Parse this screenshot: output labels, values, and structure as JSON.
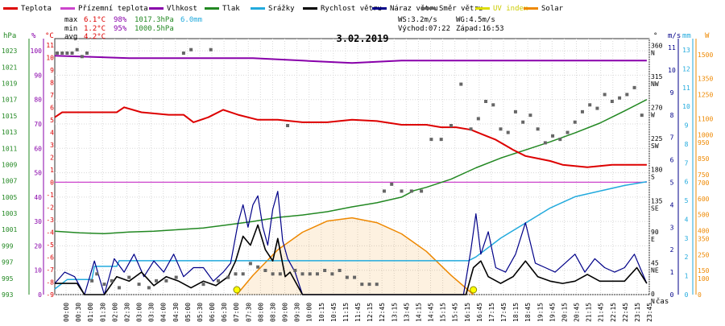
{
  "chart_data": {
    "type": "line",
    "title": "3.02.2019",
    "legend": [
      {
        "label": "Teplota",
        "color": "#dd0000"
      },
      {
        "label": "Přízemní teplota",
        "color": "#cc44cc"
      },
      {
        "label": "Vlhkost",
        "color": "#8800aa"
      },
      {
        "label": "Tlak",
        "color": "#228822"
      },
      {
        "label": "Srážky",
        "color": "#22aadd"
      },
      {
        "label": "Rychlost větru",
        "color": "#000000"
      },
      {
        "label": "Náraz větru",
        "color": "#000088"
      },
      {
        "label": "Směr větru",
        "color": "#666666"
      },
      {
        "label": "UV index",
        "color": "#dddd00"
      },
      {
        "label": "Solar",
        "color": "#ee8800"
      }
    ],
    "stats": {
      "max": {
        "label": "max",
        "temp": "6.1°C",
        "hum": "98%",
        "press": "1017.3hPa",
        "rain": "6.0mm"
      },
      "min": {
        "label": "min",
        "temp": "1.2°C",
        "hum": "95%",
        "press": "1000.5hPa"
      },
      "avg": {
        "label": "avg",
        "temp": "4.2°C"
      }
    },
    "info": {
      "ws": "WS:3.2m/s",
      "wg": "WG:4.5m/s",
      "sunrise": "Východ:07:22",
      "sunset": "Západ:16:53"
    },
    "axis_units": {
      "hpa": "hPa",
      "pct": "%",
      "degc": "°C",
      "dir": "°",
      "ms": "m/s",
      "mm": "mm",
      "w": "W",
      "cas": "čas"
    },
    "axes": {
      "hpa_ticks": [
        993,
        995,
        997,
        999,
        1001,
        1003,
        1005,
        1007,
        1009,
        1011,
        1013,
        1015,
        1017,
        1019,
        1021,
        1023
      ],
      "pct_ticks": [
        0,
        10,
        20,
        30,
        40,
        50,
        60,
        70,
        80,
        90,
        100
      ],
      "degc_ticks": [
        -9,
        -8,
        -7,
        -6,
        -5,
        -4,
        -3,
        -2,
        -1,
        0,
        1,
        2,
        3,
        4,
        5,
        6,
        7,
        8,
        9,
        10,
        11
      ],
      "dir_ticks": [
        {
          "v": 0,
          "label": "0",
          "dir": "N"
        },
        {
          "v": 45,
          "label": "45",
          "dir": "NE"
        },
        {
          "v": 90,
          "label": "90",
          "dir": "E"
        },
        {
          "v": 135,
          "label": "135",
          "dir": "SE"
        },
        {
          "v": 180,
          "label": "180",
          "dir": "S"
        },
        {
          "v": 225,
          "label": "225",
          "dir": "SW"
        },
        {
          "v": 270,
          "label": "270",
          "dir": "W"
        },
        {
          "v": 315,
          "label": "315",
          "dir": "NW"
        },
        {
          "v": 360,
          "label": "360",
          "dir": "N"
        }
      ],
      "ms_ticks": [
        0,
        1,
        2,
        3,
        4,
        5,
        6,
        7,
        8,
        9,
        10,
        11
      ],
      "mm_ticks": [
        0,
        1,
        2,
        3,
        4,
        5,
        6,
        7,
        8,
        9,
        10,
        11,
        12,
        13
      ],
      "w_ticks": [
        0,
        100,
        150,
        250,
        350,
        400,
        500,
        600,
        700,
        750,
        850,
        950,
        1000,
        1100,
        1250,
        1350,
        1500
      ],
      "x_ticks": [
        "00:00",
        "00:30",
        "01:00",
        "01:30",
        "02:00",
        "02:30",
        "03:00",
        "03:30",
        "04:00",
        "04:30",
        "05:00",
        "05:30",
        "06:00",
        "06:30",
        "07:00",
        "07:30",
        "08:00",
        "08:30",
        "09:00",
        "09:30",
        "10:00",
        "10:15",
        "10:45",
        "11:15",
        "11:45",
        "12:15",
        "12:45",
        "13:15",
        "13:45",
        "14:15",
        "14:45",
        "15:15",
        "15:45",
        "16:15",
        "16:45",
        "17:15",
        "17:45",
        "18:15",
        "18:45",
        "19:15",
        "19:45",
        "20:15",
        "20:45",
        "21:15",
        "21:45",
        "22:15",
        "22:45",
        "23:15",
        "23:45"
      ]
    },
    "series": [
      {
        "name": "Teplota",
        "unit": "°C",
        "x": [
          0,
          0.3,
          1.5,
          2.5,
          2.8,
          3.5,
          4.6,
          5.2,
          5.6,
          6.2,
          6.8,
          7.4,
          8.2,
          9.0,
          10.0,
          11.0,
          12.0,
          13.0,
          14.0,
          15.0,
          15.6,
          16.2,
          16.8,
          17.3,
          17.8,
          18.5,
          19.0,
          19.5,
          20.0,
          20.5,
          21.5,
          22.5,
          23.9
        ],
        "y": [
          5.2,
          5.6,
          5.6,
          5.6,
          6.0,
          5.6,
          5.4,
          5.4,
          4.8,
          5.2,
          5.8,
          5.4,
          5.0,
          5.0,
          4.8,
          4.8,
          5.0,
          4.9,
          4.6,
          4.6,
          4.4,
          4.4,
          4.2,
          3.8,
          3.4,
          2.6,
          2.1,
          1.9,
          1.7,
          1.4,
          1.2,
          1.4,
          1.4
        ]
      },
      {
        "name": "Přízemní teplota",
        "unit": "°C",
        "x": [
          0,
          23.9
        ],
        "y": [
          0,
          0
        ]
      },
      {
        "name": "Vlhkost",
        "unit": "%",
        "x": [
          0,
          3.0,
          6.0,
          8.0,
          10.0,
          12.0,
          14.0,
          16.0,
          18.0,
          20.0,
          22.0,
          23.9
        ],
        "y": [
          98,
          97,
          97,
          97,
          96,
          95,
          96,
          96,
          96,
          96,
          96,
          96
        ]
      },
      {
        "name": "Tlak",
        "unit": "hPa",
        "x": [
          0,
          1.0,
          2.0,
          3.0,
          4.0,
          5.0,
          6.0,
          7.0,
          8.0,
          9.0,
          10.0,
          11.0,
          12.0,
          13.0,
          14.0,
          14.5,
          15.0,
          16.0,
          17.0,
          18.0,
          19.0,
          20.0,
          21.0,
          22.0,
          23.0,
          23.9
        ],
        "y": [
          1000.8,
          1000.6,
          1000.5,
          1000.7,
          1000.8,
          1001.0,
          1001.2,
          1001.6,
          1002.0,
          1002.5,
          1002.8,
          1003.2,
          1003.8,
          1004.3,
          1005.0,
          1005.8,
          1006.2,
          1007.2,
          1008.6,
          1009.8,
          1010.8,
          1011.8,
          1012.9,
          1014.1,
          1015.6,
          1017.0
        ]
      },
      {
        "name": "Srážky",
        "unit": "mm",
        "x": [
          0,
          0.5,
          1.5,
          1.6,
          2.5,
          2.6,
          16.7,
          17.0,
          18.0,
          19.0,
          20.0,
          21.0,
          22.0,
          23.0,
          23.9
        ],
        "y": [
          0.3,
          0.8,
          0.8,
          1.5,
          1.5,
          1.8,
          1.8,
          2.0,
          3.0,
          3.8,
          4.6,
          5.2,
          5.5,
          5.8,
          6.0
        ]
      },
      {
        "name": "Rychlost větru",
        "unit": "m/s",
        "x": [
          0,
          0.5,
          0.9,
          1.2,
          1.5,
          2.0,
          2.5,
          3.0,
          3.5,
          4.0,
          4.5,
          5.0,
          5.5,
          6.0,
          6.5,
          7.0,
          7.3,
          7.6,
          7.9,
          8.2,
          8.5,
          8.8,
          9.0,
          9.3,
          9.5,
          10.0,
          16.6,
          16.9,
          17.2,
          17.5,
          18.0,
          18.5,
          19.0,
          19.5,
          20.0,
          20.5,
          21.0,
          21.5,
          22.0,
          22.5,
          23.0,
          23.5,
          23.9
        ],
        "y": [
          0.5,
          0.5,
          0.5,
          0,
          0,
          0,
          0.8,
          0.6,
          1.0,
          0.4,
          0.8,
          0.6,
          0.3,
          0.6,
          0.4,
          0.8,
          1.5,
          2.6,
          2.2,
          3.1,
          2.0,
          1.5,
          2.5,
          0.8,
          1.0,
          0,
          0,
          1.2,
          1.5,
          0.8,
          0.5,
          0.8,
          1.5,
          0.8,
          0.6,
          0.5,
          0.6,
          0.9,
          0.6,
          0.6,
          0.6,
          1.2,
          0.5
        ]
      },
      {
        "name": "Náraz větru",
        "unit": "m/s",
        "x": [
          0,
          0.4,
          0.8,
          1.2,
          1.6,
          2.0,
          2.4,
          2.8,
          3.2,
          3.6,
          4.0,
          4.4,
          4.8,
          5.2,
          5.6,
          6.0,
          6.4,
          6.8,
          7.1,
          7.4,
          7.6,
          7.8,
          8.0,
          8.2,
          8.4,
          8.6,
          8.8,
          9.0,
          9.2,
          9.4,
          9.7,
          10.0,
          16.5,
          16.8,
          17.0,
          17.2,
          17.5,
          17.8,
          18.2,
          18.6,
          19.0,
          19.4,
          19.8,
          20.2,
          20.6,
          21.0,
          21.4,
          21.8,
          22.2,
          22.6,
          23.0,
          23.4,
          23.9
        ],
        "y": [
          0.5,
          1.0,
          0.8,
          0,
          1.5,
          0,
          1.6,
          1.0,
          1.8,
          0.8,
          1.5,
          1.0,
          1.8,
          0.8,
          1.2,
          1.2,
          0.6,
          1.0,
          1.4,
          3.2,
          4.0,
          3.0,
          4.0,
          4.4,
          3.0,
          2.2,
          3.8,
          4.6,
          2.4,
          1.6,
          1.0,
          0,
          0,
          2.0,
          3.6,
          1.8,
          2.8,
          1.2,
          1.0,
          1.8,
          3.2,
          1.4,
          1.2,
          1.0,
          1.4,
          1.8,
          1.0,
          1.6,
          1.2,
          1.0,
          1.2,
          1.8,
          0.5
        ]
      },
      {
        "name": "Směr větru",
        "unit": "°",
        "x": [
          0.1,
          0.3,
          0.5,
          0.7,
          0.9,
          1.1,
          1.3,
          1.5,
          1.7,
          2.0,
          2.3,
          2.6,
          3.0,
          3.4,
          3.8,
          4.1,
          4.5,
          4.9,
          5.2,
          5.5,
          6.0,
          6.3,
          6.6,
          7.0,
          7.3,
          7.6,
          7.9,
          8.2,
          8.5,
          8.8,
          9.1,
          9.4,
          9.7,
          10.0,
          10.3,
          10.6,
          10.9,
          11.2,
          11.5,
          11.8,
          12.1,
          12.4,
          12.7,
          13.0,
          13.3,
          13.6,
          14.0,
          14.4,
          14.8,
          15.2,
          15.6,
          16.0,
          16.4,
          16.8,
          17.1,
          17.4,
          17.7,
          18.0,
          18.3,
          18.6,
          18.9,
          19.2,
          19.5,
          19.8,
          20.1,
          20.4,
          20.7,
          21.0,
          21.3,
          21.6,
          21.9,
          22.2,
          22.5,
          22.8,
          23.1,
          23.4,
          23.7
        ],
        "y": [
          350,
          350,
          350,
          350,
          355,
          345,
          350,
          20,
          30,
          15,
          20,
          10,
          25,
          15,
          10,
          20,
          20,
          25,
          350,
          355,
          15,
          355,
          20,
          25,
          30,
          30,
          45,
          40,
          35,
          30,
          30,
          245,
          35,
          30,
          30,
          30,
          35,
          30,
          35,
          25,
          25,
          15,
          15,
          15,
          150,
          160,
          150,
          150,
          150,
          225,
          225,
          245,
          305,
          240,
          255,
          280,
          275,
          240,
          235,
          265,
          250,
          260,
          240,
          220,
          230,
          225,
          235,
          250,
          265,
          275,
          270,
          290,
          280,
          285,
          290,
          300,
          260
        ]
      },
      {
        "name": "UV index",
        "unit": "",
        "x": [
          7.35,
          16.9
        ],
        "y": [
          0,
          0
        ]
      },
      {
        "name": "Solar",
        "unit": "W/m²",
        "x": [
          7.35,
          8.0,
          9.0,
          10.0,
          11.0,
          12.0,
          13.0,
          14.0,
          15.0,
          16.0,
          16.9
        ],
        "y": [
          0,
          120,
          280,
          390,
          460,
          480,
          450,
          380,
          270,
          120,
          0
        ]
      }
    ],
    "x_range": [
      0,
      24
    ],
    "grid": true
  }
}
